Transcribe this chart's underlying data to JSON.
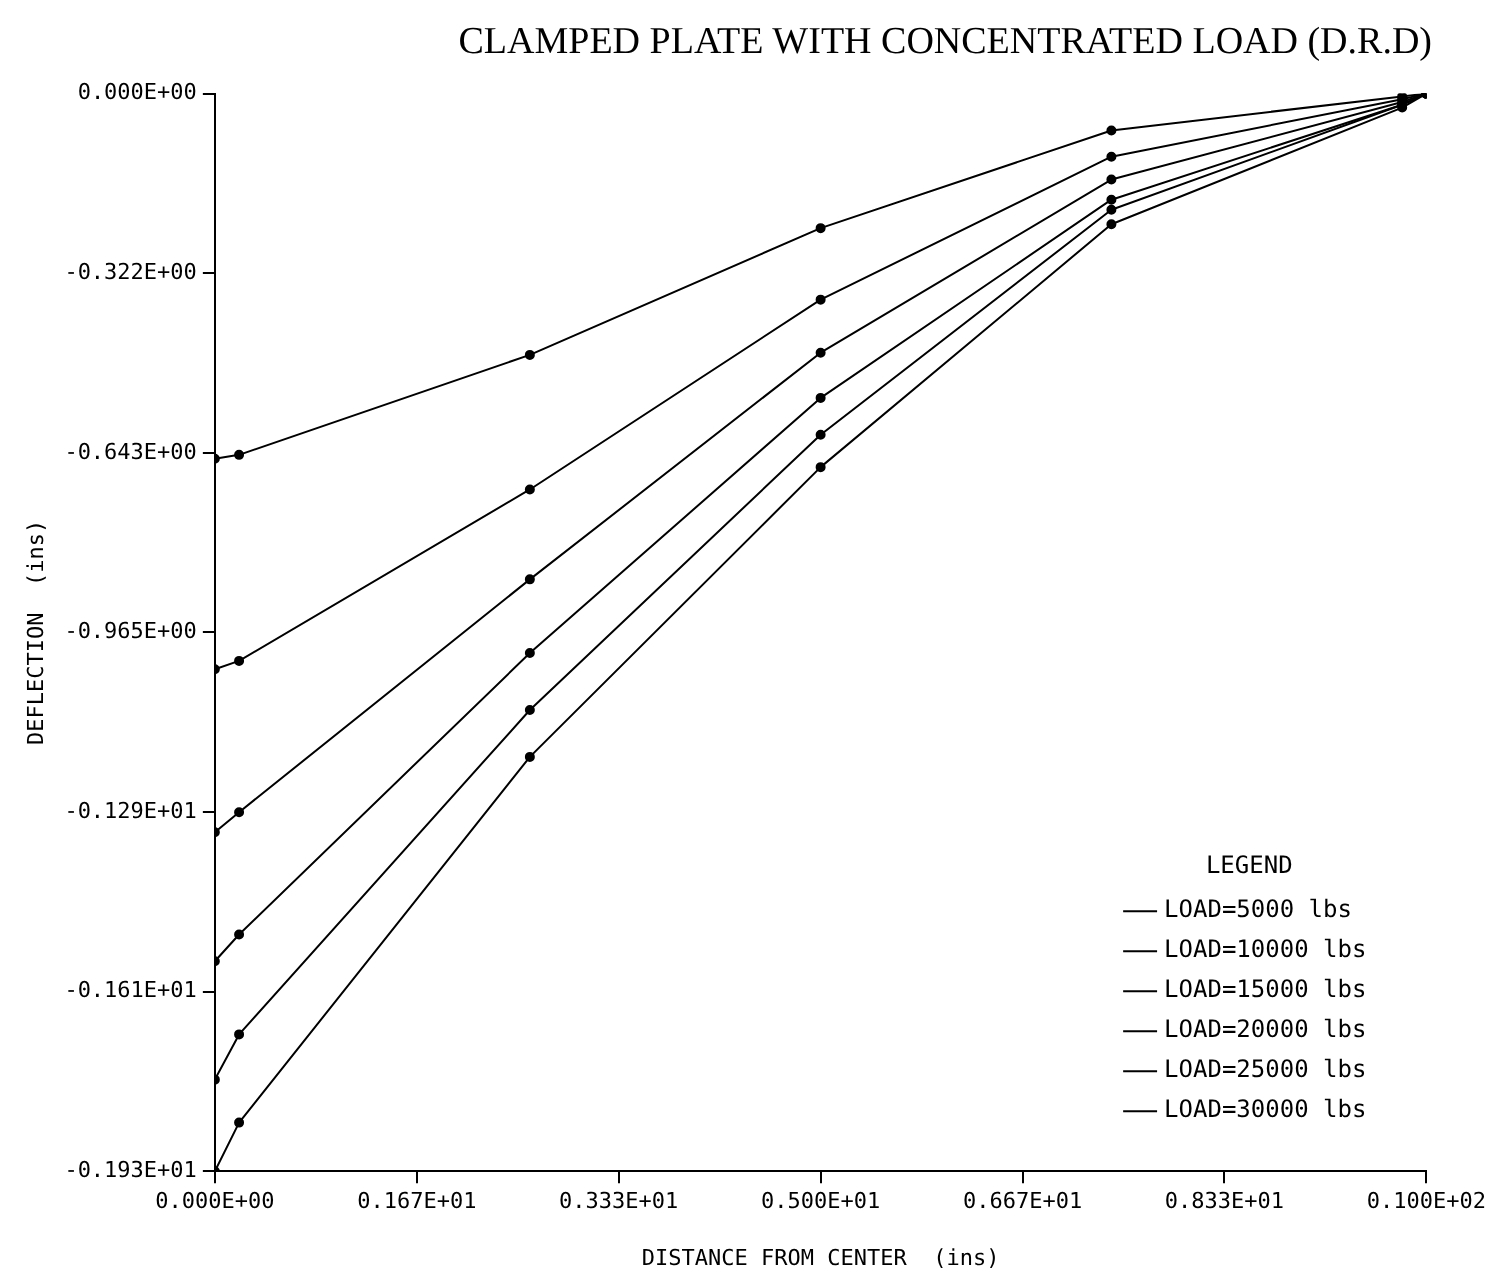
{
  "chart_data": {
    "type": "line",
    "title": "CLAMPED PLATE WITH CONCENTRATED LOAD (D.R.D)",
    "xlabel": "DISTANCE FROM CENTER  (ins)",
    "ylabel": "DEFLECTION  (ins)",
    "legend_title": "LEGEND",
    "x": [
      0,
      0.2,
      2.6,
      5.0,
      7.4,
      9.8,
      10
    ],
    "series": [
      {
        "name": "LOAD=5000 lbs",
        "color": "#000000",
        "values": [
          -0.654,
          -0.647,
          -0.468,
          -0.241,
          -0.066,
          -0.005,
          0
        ]
      },
      {
        "name": "LOAD=10000 lbs",
        "color": "#000000",
        "values": [
          -1.031,
          -1.016,
          -0.709,
          -0.369,
          -0.113,
          -0.01,
          0
        ]
      },
      {
        "name": "LOAD=15000 lbs",
        "color": "#000000",
        "values": [
          -1.323,
          -1.287,
          -0.87,
          -0.464,
          -0.154,
          -0.015,
          0
        ]
      },
      {
        "name": "LOAD=20000 lbs",
        "color": "#000000",
        "values": [
          -1.554,
          -1.506,
          -1.002,
          -0.545,
          -0.19,
          -0.02,
          0
        ]
      },
      {
        "name": "LOAD=25000 lbs",
        "color": "#000000",
        "values": [
          -1.766,
          -1.685,
          -1.104,
          -0.611,
          -0.208,
          -0.02,
          0
        ]
      },
      {
        "name": "LOAD=30000 lbs",
        "color": "#000000",
        "values": [
          -1.93,
          -1.843,
          -1.188,
          -0.669,
          -0.234,
          -0.025,
          0
        ]
      }
    ],
    "xlim": [
      0,
      10
    ],
    "xticks": [
      {
        "value": 0,
        "label": "0.000E+00"
      },
      {
        "value": 1.667,
        "label": "0.167E+01"
      },
      {
        "value": 3.333,
        "label": "0.333E+01"
      },
      {
        "value": 5,
        "label": "0.500E+01"
      },
      {
        "value": 6.667,
        "label": "0.667E+01"
      },
      {
        "value": 8.333,
        "label": "0.833E+01"
      },
      {
        "value": 10,
        "label": "0.100E+02"
      }
    ],
    "ylim": [
      -1.93,
      0
    ],
    "yticks": [
      {
        "value": 0,
        "label": "0.000E+00"
      },
      {
        "value": -0.3217,
        "label": "-0.322E+00"
      },
      {
        "value": -0.6433,
        "label": "-0.643E+00"
      },
      {
        "value": -0.965,
        "label": "-0.965E+00"
      },
      {
        "value": -1.2867,
        "label": "-0.129E+01"
      },
      {
        "value": -1.6083,
        "label": "-0.161E+01"
      },
      {
        "value": -1.93,
        "label": "-0.193E+01"
      }
    ],
    "grid": false,
    "legend": "bottom right",
    "marker": "circle",
    "line_style": "solid"
  }
}
